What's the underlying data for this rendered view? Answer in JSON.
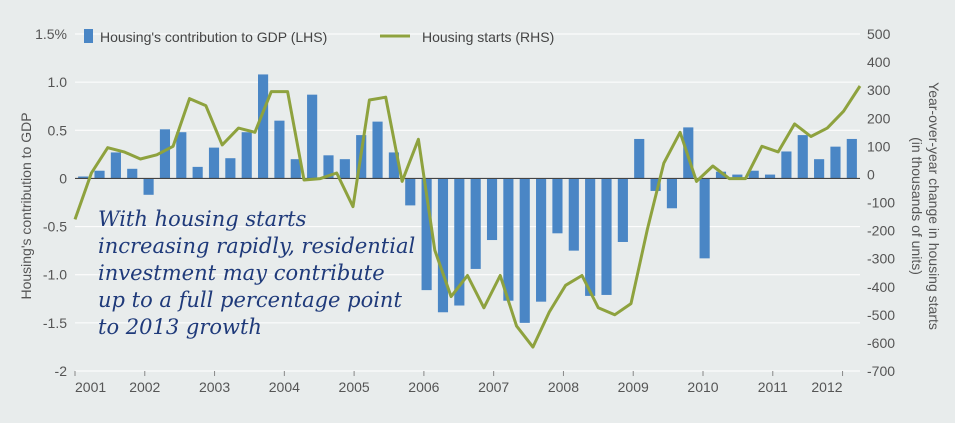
{
  "chart_data": {
    "type": "bar",
    "legend": {
      "placement": "top",
      "items": [
        {
          "label": "Housing's contribution to GDP (LHS)",
          "marker": "bar",
          "color": "#4a86c5"
        },
        {
          "label": "Housing starts (RHS)",
          "marker": "line",
          "color": "#8ea23e"
        }
      ]
    },
    "x_axis": {
      "ticks": [
        "2001",
        "2002",
        "2003",
        "2004",
        "2005",
        "2006",
        "2007",
        "2008",
        "2009",
        "2010",
        "2011",
        "2012"
      ],
      "start": 2001.0,
      "end": 2012.25
    },
    "y_left": {
      "label": "Housing's contribution to GDP",
      "ylim": [
        -2.0,
        1.5
      ],
      "ticks": [
        {
          "value": 1.5,
          "label": "1.5%"
        },
        {
          "value": 1.0,
          "label": "1.0"
        },
        {
          "value": 0.5,
          "label": "0.5"
        },
        {
          "value": 0.0,
          "label": "0"
        },
        {
          "value": -0.5,
          "label": "-0.5"
        },
        {
          "value": -1.0,
          "label": "-1.0"
        },
        {
          "value": -1.5,
          "label": "-1.5"
        },
        {
          "value": -2.0,
          "label": "-2"
        }
      ]
    },
    "y_right": {
      "label_line1": "Year-over-year change in housing starts",
      "label_line2": "(in thousands of units)",
      "ylim": [
        -700,
        500
      ],
      "ticks": [
        "500",
        "400",
        "300",
        "200",
        "100",
        "0",
        "-100",
        "-200",
        "-300",
        "-400",
        "-500",
        "-600",
        "-700"
      ]
    },
    "series": [
      {
        "name": "Housing's contribution to GDP (LHS)",
        "type": "bar",
        "color": "#4a86c5",
        "values": [
          0.02,
          0.08,
          0.27,
          0.1,
          -0.17,
          0.51,
          0.48,
          0.12,
          0.32,
          0.21,
          0.48,
          1.08,
          0.6,
          0.2,
          0.87,
          0.24,
          0.2,
          0.45,
          0.59,
          0.27,
          -0.28,
          -1.16,
          -1.39,
          -1.32,
          -0.94,
          -0.64,
          -1.27,
          -1.5,
          -1.28,
          -0.57,
          -0.75,
          -1.22,
          -1.21,
          -0.66,
          0.41,
          -0.13,
          -0.31,
          0.53,
          -0.83,
          0.07,
          0.04,
          0.08,
          0.04,
          0.28,
          0.45,
          0.2,
          0.33,
          0.41
        ]
      },
      {
        "name": "Housing starts (RHS)",
        "type": "line",
        "color": "#8ea23e",
        "values": [
          -160,
          5,
          95,
          80,
          55,
          70,
          100,
          270,
          245,
          105,
          165,
          150,
          295,
          295,
          -20,
          -15,
          5,
          -115,
          265,
          275,
          -25,
          125,
          -270,
          -435,
          -360,
          -475,
          -360,
          -540,
          -615,
          -490,
          -395,
          -360,
          -475,
          -500,
          -460,
          -195,
          40,
          150,
          -25,
          30,
          -15,
          -15,
          100,
          80,
          180,
          135,
          165,
          225,
          315
        ]
      }
    ],
    "annotation": {
      "lines": [
        "With housing starts",
        "increasing rapidly, residential",
        "investment may contribute",
        "up to a full percentage point",
        "to 2013 growth"
      ]
    }
  }
}
